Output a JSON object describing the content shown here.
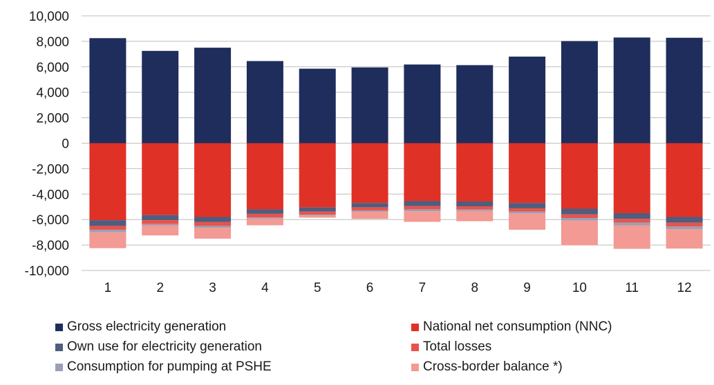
{
  "chart_data": {
    "type": "bar",
    "stacked": true,
    "categories": [
      "1",
      "2",
      "3",
      "4",
      "5",
      "6",
      "7",
      "8",
      "9",
      "10",
      "11",
      "12"
    ],
    "ylim": [
      -10000,
      10000
    ],
    "yticks": [
      10000,
      8000,
      6000,
      4000,
      2000,
      0,
      -2000,
      -4000,
      -6000,
      -8000,
      -10000
    ],
    "ytick_labels": [
      "10,000",
      "8,000",
      "6,000",
      "4,000",
      "2,000",
      "0",
      "-2,000",
      "-4,000",
      "-6,000",
      "-8,000",
      "-10,000"
    ],
    "grid": true,
    "legend_position": "bottom",
    "title": "",
    "xlabel": "",
    "ylabel": "",
    "series": [
      {
        "name": "Gross electricity generation",
        "color": "#1f2d5c",
        "values": [
          8250,
          7250,
          7500,
          6450,
          5850,
          5950,
          6180,
          6130,
          6800,
          8020,
          8300,
          8280
        ]
      },
      {
        "name": "National net consumption (NNC)",
        "color": "#e03127",
        "values": [
          -6050,
          -5650,
          -5800,
          -5200,
          -5050,
          -4700,
          -4550,
          -4580,
          -4700,
          -5150,
          -5500,
          -5800
        ]
      },
      {
        "name": "Own use for electricity generation",
        "color": "#4f5d7e",
        "values": [
          -450,
          -400,
          -400,
          -350,
          -320,
          -350,
          -400,
          -380,
          -420,
          -450,
          -450,
          -450
        ]
      },
      {
        "name": "Total losses",
        "color": "#e8534b",
        "values": [
          -300,
          -300,
          -300,
          -280,
          -250,
          -250,
          -250,
          -250,
          -250,
          -280,
          -300,
          -300
        ]
      },
      {
        "name": "Consumption for pumping at PSHE",
        "color": "#9aa0b8",
        "values": [
          -200,
          -100,
          -150,
          -100,
          -80,
          -100,
          -150,
          -120,
          -150,
          -200,
          -200,
          -200
        ]
      },
      {
        "name": "Cross-border balance *)",
        "color": "#f29a93",
        "values": [
          -1250,
          -800,
          -850,
          -520,
          -150,
          -550,
          -830,
          -800,
          -1280,
          -1940,
          -1850,
          -1530
        ]
      }
    ]
  }
}
